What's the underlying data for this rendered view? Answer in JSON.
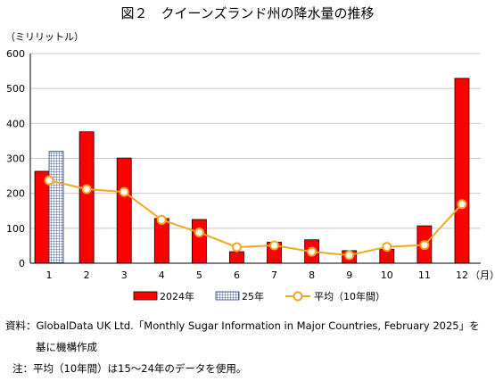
{
  "chart_data": {
    "type": "bar",
    "title": "図２　クイーンズランド州の降水量の推移",
    "ylabel": "（ミリリットル）",
    "xunit": "（月）",
    "categories": [
      "1",
      "2",
      "3",
      "4",
      "5",
      "6",
      "7",
      "8",
      "9",
      "10",
      "11",
      "12"
    ],
    "ylim": [
      0,
      600
    ],
    "yticks": [
      0,
      100,
      200,
      300,
      400,
      500,
      600
    ],
    "grid": true,
    "legend_position": "bottom",
    "series": [
      {
        "name": "2024年",
        "kind": "bar",
        "color": "#ff0000",
        "values": [
          263,
          376,
          301,
          128,
          125,
          33,
          60,
          67,
          36,
          40,
          107,
          529
        ]
      },
      {
        "name": "25年",
        "kind": "bar",
        "pattern": "grid",
        "color": "#1f3a93",
        "values": [
          320,
          null,
          null,
          null,
          null,
          null,
          null,
          null,
          null,
          null,
          null,
          null
        ]
      },
      {
        "name": "平均（10年間）",
        "kind": "line",
        "color": "#f5a623",
        "values": [
          237,
          212,
          204,
          124,
          88,
          46,
          51,
          33,
          23,
          47,
          52,
          169
        ]
      }
    ]
  },
  "notes": {
    "source_line1": "資料：GlobalData UK Ltd.「Monthly Sugar Information in Major Countries, February 2025」を",
    "source_line2": "基に機構作成",
    "footnote": "注：平均（10年間）は15～24年のデータを使用。"
  }
}
